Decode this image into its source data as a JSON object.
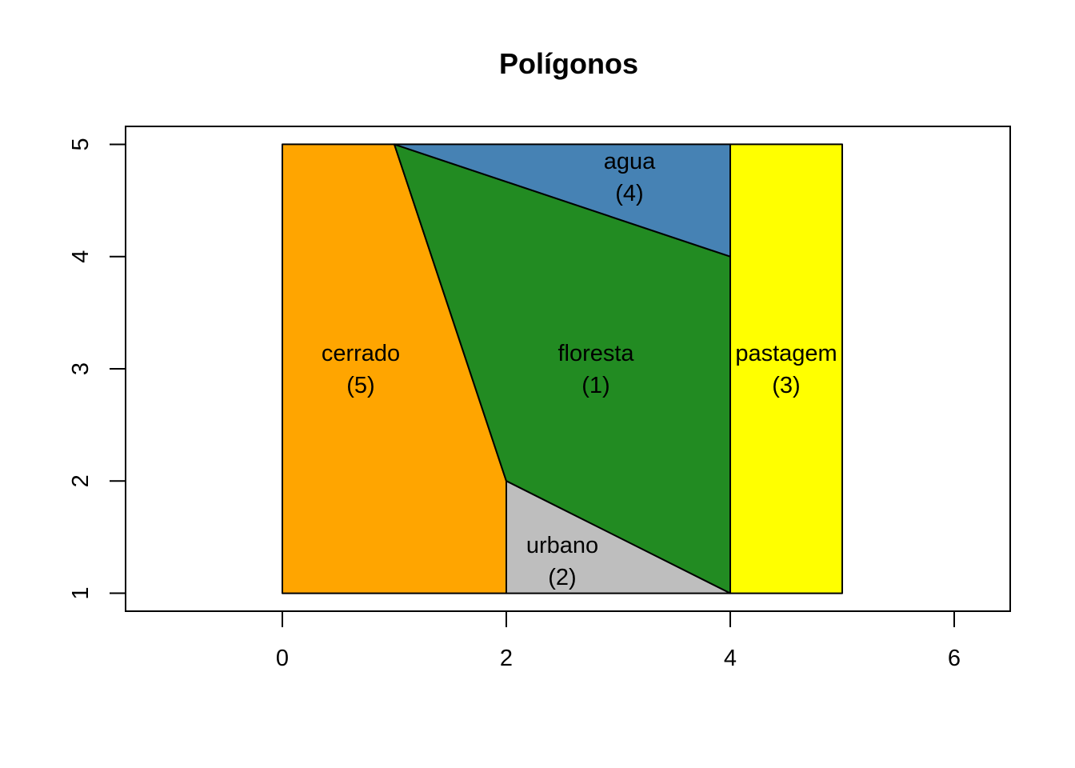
{
  "chart_data": {
    "type": "polygon-map",
    "title": "Polígonos",
    "xlabel": "",
    "ylabel": "",
    "xlim": [
      -1.4,
      6.5
    ],
    "ylim": [
      0.84,
      5.16
    ],
    "x_ticks": [
      0,
      2,
      4,
      6
    ],
    "y_ticks": [
      1,
      2,
      3,
      4,
      5
    ],
    "grid": false,
    "polygons": [
      {
        "name": "cerrado",
        "id": "(5)",
        "color": "#FFA500",
        "coords": [
          [
            0,
            1
          ],
          [
            0,
            5
          ],
          [
            1,
            5
          ],
          [
            2,
            2
          ],
          [
            2,
            1
          ]
        ],
        "label_pos": [
          0.7,
          3
        ]
      },
      {
        "name": "floresta",
        "id": "(1)",
        "color": "#228B22",
        "coords": [
          [
            1,
            5
          ],
          [
            4,
            4
          ],
          [
            4,
            1
          ],
          [
            2,
            2
          ]
        ],
        "label_pos": [
          2.8,
          3
        ]
      },
      {
        "name": "agua",
        "id": "(4)",
        "color": "#4682B4",
        "coords": [
          [
            1,
            5
          ],
          [
            4,
            5
          ],
          [
            4,
            4
          ]
        ],
        "label_pos": [
          3.1,
          4.71
        ]
      },
      {
        "name": "urbano",
        "id": "(2)",
        "color": "#BEBEBE",
        "coords": [
          [
            2,
            2
          ],
          [
            4,
            1
          ],
          [
            2,
            1
          ]
        ],
        "label_pos": [
          2.5,
          1.29
        ]
      },
      {
        "name": "pastagem",
        "id": "(3)",
        "color": "#FFFF00",
        "coords": [
          [
            4,
            1
          ],
          [
            4,
            5
          ],
          [
            5,
            5
          ],
          [
            5,
            1
          ]
        ],
        "label_pos": [
          4.5,
          3
        ]
      }
    ]
  }
}
